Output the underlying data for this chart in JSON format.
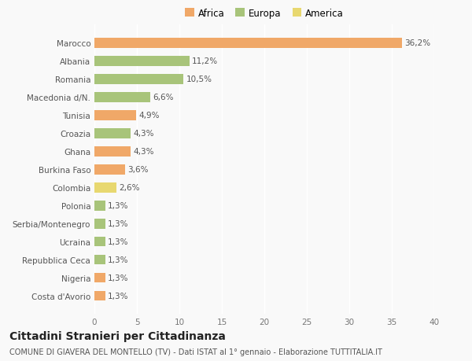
{
  "countries": [
    "Costa d'Avorio",
    "Nigeria",
    "Repubblica Ceca",
    "Ucraina",
    "Serbia/Montenegro",
    "Polonia",
    "Colombia",
    "Burkina Faso",
    "Ghana",
    "Croazia",
    "Tunisia",
    "Macedonia d/N.",
    "Romania",
    "Albania",
    "Marocco"
  ],
  "values": [
    1.3,
    1.3,
    1.3,
    1.3,
    1.3,
    1.3,
    2.6,
    3.6,
    4.3,
    4.3,
    4.9,
    6.6,
    10.5,
    11.2,
    36.2
  ],
  "labels": [
    "1,3%",
    "1,3%",
    "1,3%",
    "1,3%",
    "1,3%",
    "1,3%",
    "2,6%",
    "3,6%",
    "4,3%",
    "4,3%",
    "4,9%",
    "6,6%",
    "10,5%",
    "11,2%",
    "36,2%"
  ],
  "colors": [
    "#f0a868",
    "#f0a868",
    "#a8c47a",
    "#a8c47a",
    "#a8c47a",
    "#a8c47a",
    "#e8d870",
    "#f0a868",
    "#f0a868",
    "#a8c47a",
    "#f0a868",
    "#a8c47a",
    "#a8c47a",
    "#a8c47a",
    "#f0a868"
  ],
  "legend_labels": [
    "Africa",
    "Europa",
    "America"
  ],
  "legend_colors": [
    "#f0a868",
    "#a8c47a",
    "#e8d870"
  ],
  "title": "Cittadini Stranieri per Cittadinanza",
  "subtitle": "COMUNE DI GIAVERA DEL MONTELLO (TV) - Dati ISTAT al 1° gennaio - Elaborazione TUTTITALIA.IT",
  "xlim": [
    0,
    40
  ],
  "xticks": [
    0,
    5,
    10,
    15,
    20,
    25,
    30,
    35,
    40
  ],
  "bg_color": "#f9f9f9",
  "bar_height": 0.55,
  "title_fontsize": 10,
  "subtitle_fontsize": 7,
  "label_fontsize": 7.5,
  "tick_fontsize": 7.5,
  "legend_fontsize": 8.5
}
